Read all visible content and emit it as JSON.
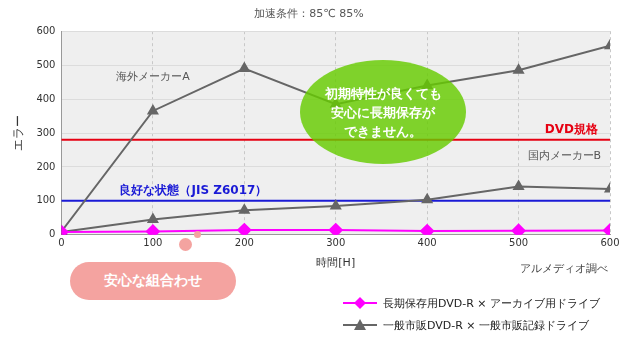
{
  "chart_data": {
    "type": "line",
    "title": "加速条件：85℃ 85%",
    "x_label": "時間[H]",
    "y_label": "エラー",
    "x": [
      0,
      100,
      200,
      300,
      400,
      500,
      600
    ],
    "series": [
      {
        "name": "長期保存用DVD-R × アーカイブ用ドライブ",
        "color": "#ff00ff",
        "marker": "diamond",
        "values": [
          8,
          10,
          14,
          14,
          11,
          12,
          13
        ]
      },
      {
        "name": "一般市販DVD-R × 一般市販記録ドライブ",
        "label": "海外メーカーA",
        "color": "#666666",
        "marker": "triangle",
        "values": [
          10,
          365,
          490,
          385,
          440,
          485,
          557
        ]
      },
      {
        "name": "一般市販DVD-R × 一般市販記録ドライブ",
        "label": "国内メーカーB",
        "color": "#666666",
        "marker": "triangle",
        "values": [
          8,
          45,
          72,
          85,
          103,
          142,
          135
        ]
      }
    ],
    "reference_lines": [
      {
        "value": 280,
        "label": "DVD規格",
        "color": "#e60012"
      },
      {
        "value": 100,
        "label": "良好な状態（JIS Z6017）",
        "color": "#1a1ad6"
      }
    ],
    "annotations": {
      "callout": "初期特性が良くても\n安心に長期保存が\nできません。",
      "badge": "安心な組合わせ",
      "source": "アルメディオ調べ"
    },
    "xlim": [
      0,
      600
    ],
    "xticks": [
      0,
      100,
      200,
      300,
      400,
      500,
      600
    ],
    "ylim": [
      0,
      600
    ],
    "yticks": [
      0,
      100,
      200,
      300,
      400,
      500,
      600
    ],
    "grid": true,
    "legend": "bottom right"
  }
}
